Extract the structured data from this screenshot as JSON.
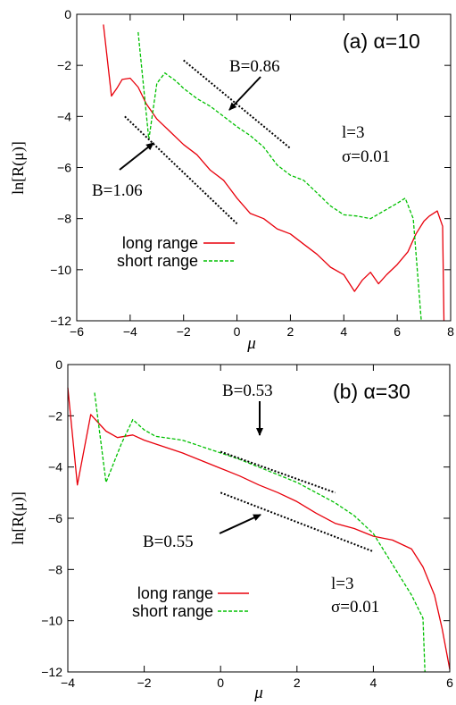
{
  "chart_data": [
    {
      "type": "line",
      "panel_label": "(a) α=10",
      "xlabel": "μ",
      "ylabel": "ln[R(μ)]",
      "xlim": [
        -6,
        8
      ],
      "ylim": [
        -12,
        0
      ],
      "xticks": [
        -6,
        -4,
        -2,
        0,
        2,
        4,
        6,
        8
      ],
      "yticks": [
        0,
        -2,
        -4,
        -6,
        -8,
        -10,
        -12
      ],
      "grid": false,
      "legend_position": "bottom-left",
      "params": [
        "l=3",
        "σ=0.01"
      ],
      "series": [
        {
          "name": "long range",
          "color": "#e8000b",
          "dash": "solid",
          "points": [
            [
              -5.0,
              -0.4
            ],
            [
              -4.7,
              -3.2
            ],
            [
              -4.5,
              -2.9
            ],
            [
              -4.3,
              -2.55
            ],
            [
              -4.0,
              -2.5
            ],
            [
              -3.7,
              -2.85
            ],
            [
              -3.4,
              -3.5
            ],
            [
              -3.0,
              -4.1
            ],
            [
              -2.5,
              -4.6
            ],
            [
              -2.0,
              -5.1
            ],
            [
              -1.5,
              -5.5
            ],
            [
              -1.0,
              -6.1
            ],
            [
              -0.5,
              -6.5
            ],
            [
              0.0,
              -7.2
            ],
            [
              0.5,
              -7.8
            ],
            [
              1.0,
              -8.0
            ],
            [
              1.5,
              -8.4
            ],
            [
              2.0,
              -8.6
            ],
            [
              2.5,
              -9.0
            ],
            [
              3.0,
              -9.4
            ],
            [
              3.5,
              -9.9
            ],
            [
              4.0,
              -10.2
            ],
            [
              4.4,
              -10.85
            ],
            [
              4.7,
              -10.4
            ],
            [
              5.0,
              -10.1
            ],
            [
              5.3,
              -10.55
            ],
            [
              5.6,
              -10.2
            ],
            [
              6.0,
              -9.8
            ],
            [
              6.4,
              -9.3
            ],
            [
              6.7,
              -8.6
            ],
            [
              7.0,
              -8.1
            ],
            [
              7.2,
              -7.9
            ],
            [
              7.5,
              -7.7
            ],
            [
              7.7,
              -8.3
            ],
            [
              7.75,
              -12
            ]
          ]
        },
        {
          "name": "short range",
          "color": "#00c000",
          "dash": "4,2",
          "points": [
            [
              -3.7,
              -0.7
            ],
            [
              -3.3,
              -4.9
            ],
            [
              -3.0,
              -2.7
            ],
            [
              -2.7,
              -2.3
            ],
            [
              -2.3,
              -2.6
            ],
            [
              -2.0,
              -2.9
            ],
            [
              -1.5,
              -3.3
            ],
            [
              -1.0,
              -3.6
            ],
            [
              -0.5,
              -4.0
            ],
            [
              0.0,
              -4.4
            ],
            [
              0.5,
              -4.75
            ],
            [
              1.0,
              -5.2
            ],
            [
              1.5,
              -5.9
            ],
            [
              2.0,
              -6.3
            ],
            [
              2.5,
              -6.5
            ],
            [
              3.0,
              -7.0
            ],
            [
              3.5,
              -7.5
            ],
            [
              4.0,
              -7.85
            ],
            [
              4.5,
              -7.9
            ],
            [
              5.0,
              -8.0
            ],
            [
              5.5,
              -7.7
            ],
            [
              6.0,
              -7.4
            ],
            [
              6.3,
              -7.2
            ],
            [
              6.6,
              -8.0
            ],
            [
              6.9,
              -12
            ]
          ]
        }
      ],
      "guides": [
        {
          "label": "B=0.86",
          "line": [
            [
              -2.0,
              -1.8
            ],
            [
              2.0,
              -5.25
            ]
          ]
        },
        {
          "label": "B=1.06",
          "line": [
            [
              -4.2,
              -4.0
            ],
            [
              0.0,
              -8.2
            ]
          ]
        }
      ]
    },
    {
      "type": "line",
      "panel_label": "(b) α=30",
      "xlabel": "μ",
      "ylabel": "ln[R(μ)]",
      "xlim": [
        -4,
        6
      ],
      "ylim": [
        -12,
        0
      ],
      "xticks": [
        -4,
        -2,
        0,
        2,
        4,
        6
      ],
      "yticks": [
        0,
        -2,
        -4,
        -6,
        -8,
        -10,
        -12
      ],
      "grid": false,
      "legend_position": "bottom-left",
      "params": [
        "l=3",
        "σ=0.01"
      ],
      "series": [
        {
          "name": "long range",
          "color": "#e8000b",
          "dash": "solid",
          "points": [
            [
              -4.0,
              -0.9
            ],
            [
              -3.75,
              -4.7
            ],
            [
              -3.4,
              -1.95
            ],
            [
              -3.0,
              -2.6
            ],
            [
              -2.7,
              -2.85
            ],
            [
              -2.3,
              -2.75
            ],
            [
              -2.0,
              -2.95
            ],
            [
              -1.5,
              -3.2
            ],
            [
              -1.0,
              -3.45
            ],
            [
              -0.5,
              -3.75
            ],
            [
              0.0,
              -4.05
            ],
            [
              0.5,
              -4.35
            ],
            [
              1.0,
              -4.7
            ],
            [
              1.5,
              -5.0
            ],
            [
              2.0,
              -5.35
            ],
            [
              2.5,
              -5.8
            ],
            [
              3.0,
              -6.2
            ],
            [
              3.5,
              -6.4
            ],
            [
              4.0,
              -6.7
            ],
            [
              4.5,
              -6.85
            ],
            [
              5.0,
              -7.2
            ],
            [
              5.3,
              -7.9
            ],
            [
              5.6,
              -9.0
            ],
            [
              5.8,
              -10.3
            ],
            [
              6.0,
              -11.9
            ]
          ]
        },
        {
          "name": "short range",
          "color": "#00c000",
          "dash": "4,2",
          "points": [
            [
              -3.3,
              -1.1
            ],
            [
              -3.0,
              -4.6
            ],
            [
              -2.6,
              -3.1
            ],
            [
              -2.3,
              -2.15
            ],
            [
              -2.0,
              -2.55
            ],
            [
              -1.7,
              -2.8
            ],
            [
              -1.0,
              -2.95
            ],
            [
              -0.5,
              -3.2
            ],
            [
              0.0,
              -3.45
            ],
            [
              0.5,
              -3.7
            ],
            [
              1.0,
              -4.0
            ],
            [
              1.5,
              -4.3
            ],
            [
              2.0,
              -4.6
            ],
            [
              2.5,
              -5.0
            ],
            [
              3.0,
              -5.4
            ],
            [
              3.5,
              -5.9
            ],
            [
              4.0,
              -6.6
            ],
            [
              4.5,
              -7.8
            ],
            [
              5.0,
              -9.0
            ],
            [
              5.3,
              -9.9
            ],
            [
              5.35,
              -12
            ]
          ]
        }
      ],
      "guides": [
        {
          "label": "B=0.53",
          "line": [
            [
              0.0,
              -3.4
            ],
            [
              3.0,
              -5.0
            ]
          ]
        },
        {
          "label": "B=0.55",
          "line": [
            [
              0.0,
              -5.0
            ],
            [
              4.0,
              -7.3
            ]
          ]
        }
      ]
    }
  ]
}
